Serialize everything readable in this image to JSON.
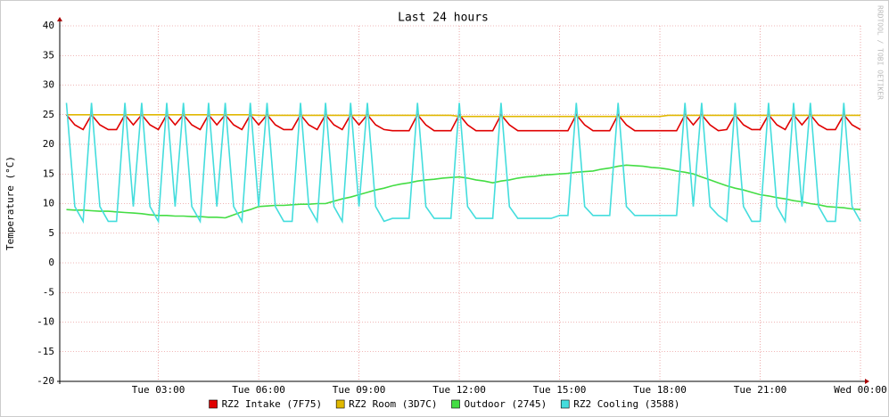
{
  "chart_data": {
    "type": "line",
    "title": "Last 24 hours",
    "y_label": "Temperature (°C)",
    "watermark": "RRDTOOL / TOBI OETIKER",
    "x": [
      0.25,
      0.5,
      0.75,
      1,
      1.25,
      1.5,
      1.75,
      2,
      2.25,
      2.5,
      2.75,
      3,
      3.25,
      3.5,
      3.75,
      4,
      4.25,
      4.5,
      4.75,
      5,
      5.25,
      5.5,
      5.75,
      6,
      6.25,
      6.5,
      6.75,
      7,
      7.25,
      7.5,
      7.75,
      8,
      8.25,
      8.5,
      8.75,
      9,
      9.25,
      9.5,
      9.75,
      10,
      10.25,
      10.5,
      10.75,
      11,
      11.25,
      11.5,
      11.75,
      12,
      12.25,
      12.5,
      12.75,
      13,
      13.25,
      13.5,
      13.75,
      14,
      14.25,
      14.5,
      14.75,
      15,
      15.25,
      15.5,
      15.75,
      16,
      16.25,
      16.5,
      16.75,
      17,
      17.25,
      17.5,
      17.75,
      18,
      18.25,
      18.5,
      18.75,
      19,
      19.25,
      19.5,
      19.75,
      20,
      20.25,
      20.5,
      20.75,
      21,
      21.25,
      21.5,
      21.75,
      22,
      22.25,
      22.5,
      22.75,
      23,
      23.25,
      23.5,
      23.75,
      24
    ],
    "xlim": [
      0.05,
      24
    ],
    "xticks": [
      {
        "value": 3,
        "label": "Tue 03:00"
      },
      {
        "value": 6,
        "label": "Tue 06:00"
      },
      {
        "value": 9,
        "label": "Tue 09:00"
      },
      {
        "value": 12,
        "label": "Tue 12:00"
      },
      {
        "value": 15,
        "label": "Tue 15:00"
      },
      {
        "value": 18,
        "label": "Tue 18:00"
      },
      {
        "value": 21,
        "label": "Tue 21:00"
      },
      {
        "value": 24,
        "label": "Wed 00:00"
      }
    ],
    "ylim": [
      -20,
      40
    ],
    "yticks": [
      -20,
      -15,
      -10,
      -5,
      0,
      5,
      10,
      15,
      20,
      25,
      30,
      35,
      40
    ],
    "grid": true,
    "series": [
      {
        "name": "RZ2 Intake (7F75)",
        "color": "#e00000",
        "values": [
          25,
          23.3,
          22.5,
          25,
          23.3,
          22.5,
          22.5,
          25,
          23.3,
          25,
          23.3,
          22.5,
          25,
          23.3,
          25,
          23.3,
          22.5,
          25,
          23.3,
          25,
          23.3,
          22.5,
          25,
          23.3,
          25,
          23.3,
          22.5,
          22.5,
          25,
          23.3,
          22.5,
          25,
          23.3,
          22.5,
          25,
          23.3,
          25,
          23.3,
          22.5,
          22.3,
          22.3,
          22.3,
          25,
          23.3,
          22.3,
          22.3,
          22.3,
          25,
          23.3,
          22.3,
          22.3,
          22.3,
          25,
          23.3,
          22.3,
          22.3,
          22.3,
          22.3,
          22.3,
          22.3,
          22.3,
          25,
          23.3,
          22.3,
          22.3,
          22.3,
          25,
          23.3,
          22.3,
          22.3,
          22.3,
          22.3,
          22.3,
          22.3,
          25,
          23.3,
          25,
          23.3,
          22.3,
          22.5,
          25,
          23.3,
          22.5,
          22.5,
          25,
          23.3,
          22.5,
          25,
          23.3,
          25,
          23.3,
          22.5,
          22.5,
          25,
          23.3,
          22.5
        ]
      },
      {
        "name": "RZ2 Room (3D7C)",
        "color": "#e0b800",
        "values": [
          25,
          25,
          25,
          25,
          25,
          25,
          25,
          25,
          25,
          25,
          25,
          25,
          25,
          25,
          25,
          25,
          25,
          25,
          25,
          25,
          25,
          25,
          25,
          24.9,
          24.9,
          24.9,
          24.9,
          24.9,
          24.9,
          24.9,
          24.9,
          24.9,
          24.9,
          24.9,
          24.9,
          24.9,
          24.9,
          24.9,
          24.9,
          24.9,
          24.9,
          24.9,
          24.9,
          24.9,
          24.9,
          24.9,
          24.9,
          24.7,
          24.7,
          24.7,
          24.7,
          24.7,
          24.7,
          24.7,
          24.7,
          24.7,
          24.7,
          24.7,
          24.7,
          24.7,
          24.7,
          24.7,
          24.7,
          24.7,
          24.7,
          24.7,
          24.7,
          24.7,
          24.7,
          24.7,
          24.7,
          24.7,
          24.9,
          24.9,
          24.9,
          24.9,
          24.9,
          24.9,
          24.9,
          24.9,
          24.9,
          24.9,
          24.9,
          24.9,
          24.9,
          24.9,
          24.9,
          24.9,
          24.9,
          24.9,
          24.9,
          24.9,
          24.9,
          24.9,
          24.9,
          24.9
        ]
      },
      {
        "name": "Outdoor (2745)",
        "color": "#44dd44",
        "values": [
          9,
          8.9,
          8.9,
          8.8,
          8.7,
          8.7,
          8.6,
          8.5,
          8.4,
          8.3,
          8.1,
          8,
          8,
          7.9,
          7.9,
          7.8,
          7.8,
          7.7,
          7.7,
          7.6,
          8.1,
          8.6,
          9,
          9.5,
          9.6,
          9.7,
          9.7,
          9.8,
          9.9,
          9.9,
          10,
          10,
          10.4,
          10.8,
          11.1,
          11.5,
          11.9,
          12.3,
          12.6,
          13,
          13.3,
          13.5,
          13.8,
          14,
          14.1,
          14.3,
          14.4,
          14.5,
          14.3,
          14,
          13.8,
          13.5,
          13.8,
          14,
          14.3,
          14.5,
          14.6,
          14.8,
          14.9,
          15,
          15.1,
          15.3,
          15.4,
          15.5,
          15.8,
          16,
          16.3,
          16.5,
          16.4,
          16.3,
          16.1,
          16,
          15.8,
          15.5,
          15.3,
          15,
          14.5,
          14,
          13.5,
          13,
          12.6,
          12.3,
          11.9,
          11.5,
          11.3,
          11,
          10.8,
          10.5,
          10.3,
          10,
          9.8,
          9.5,
          9.4,
          9.3,
          9.1,
          9
        ]
      },
      {
        "name": "RZ2 Cooling (3588)",
        "color": "#44dddd",
        "values": [
          27,
          9.5,
          7,
          27,
          9.5,
          7,
          7,
          27,
          9.5,
          27,
          9.5,
          7,
          27,
          9.5,
          27,
          9.5,
          7,
          27,
          9.5,
          27,
          9.5,
          7,
          27,
          9.5,
          27,
          9.5,
          7,
          7,
          27,
          9.5,
          7,
          27,
          9.5,
          7,
          27,
          9.5,
          27,
          9.5,
          7,
          7.5,
          7.5,
          7.5,
          27,
          9.5,
          7.5,
          7.5,
          7.5,
          27,
          9.5,
          7.5,
          7.5,
          7.5,
          27,
          9.5,
          7.5,
          7.5,
          7.5,
          7.5,
          7.5,
          8,
          8,
          27,
          9.5,
          8,
          8,
          8,
          27,
          9.5,
          8,
          8,
          8,
          8,
          8,
          8,
          27,
          9.5,
          27,
          9.5,
          8,
          7,
          27,
          9.5,
          7,
          7,
          27,
          9.5,
          7,
          27,
          9.5,
          27,
          9.5,
          7,
          7,
          27,
          9.5,
          7
        ]
      }
    ]
  }
}
